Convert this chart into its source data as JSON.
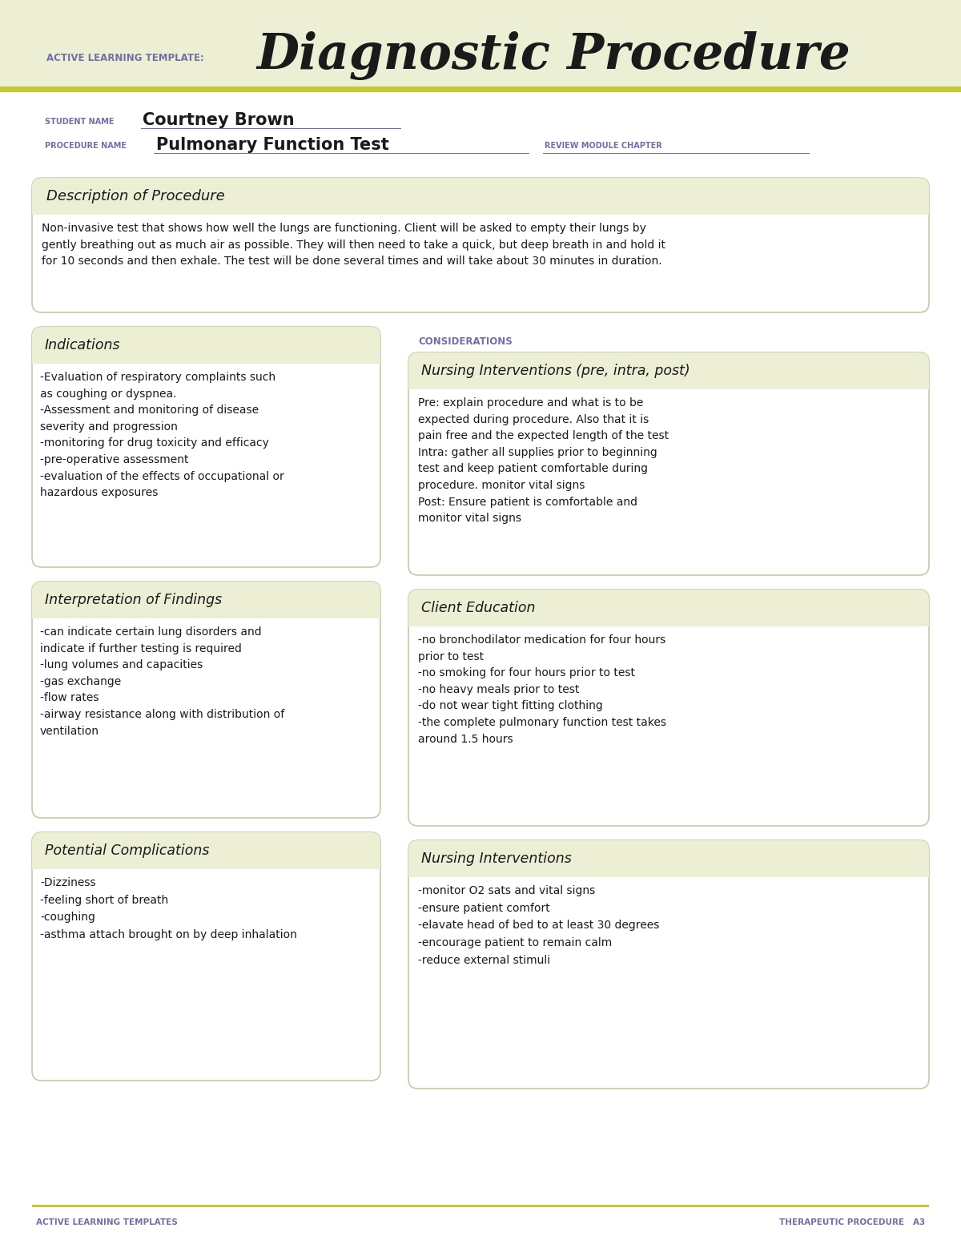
{
  "bg_color": "#edefd4",
  "white_bg": "#ffffff",
  "box_bg": "#edefd4",
  "box_border": "#c8c8a8",
  "olive_line": "#c8c832",
  "purple_text": "#7070a8",
  "dark_text": "#1a1a1a",
  "title_label": "ACTIVE LEARNING TEMPLATE:",
  "title_main": "Diagnostic Procedure",
  "student_label": "STUDENT NAME",
  "student_name": "Courtney Brown",
  "procedure_label": "PROCEDURE NAME",
  "procedure_name": "Pulmonary Function Test",
  "review_label": "REVIEW MODULE CHAPTER",
  "desc_title": "Description of Procedure",
  "desc_text": "Non-invasive test that shows how well the lungs are functioning. Client will be asked to empty their lungs by\ngently breathing out as much air as possible. They will then need to take a quick, but deep breath in and hold it\nfor 10 seconds and then exhale. The test will be done several times and will take about 30 minutes in duration.",
  "indications_title": "Indications",
  "indications_text": "-Evaluation of respiratory complaints such\nas coughing or dyspnea.\n-Assessment and monitoring of disease\nseverity and progression\n-monitoring for drug toxicity and efficacy\n-pre-operative assessment\n-evaluation of the effects of occupational or\nhazardous exposures",
  "considerations_label": "CONSIDERATIONS",
  "nursing_interventions_title": "Nursing Interventions (pre, intra, post)",
  "nursing_interventions_text": "Pre: explain procedure and what is to be\nexpected during procedure. Also that it is\npain free and the expected length of the test\nIntra: gather all supplies prior to beginning\ntest and keep patient comfortable during\nprocedure. monitor vital signs\nPost: Ensure patient is comfortable and\nmonitor vital signs",
  "interpretation_title": "Interpretation of Findings",
  "interpretation_text": "-can indicate certain lung disorders and\nindicate if further testing is required\n-lung volumes and capacities\n-gas exchange\n-flow rates\n-airway resistance along with distribution of\nventilation",
  "client_education_title": "Client Education",
  "client_education_text": "-no bronchodilator medication for four hours\nprior to test\n-no smoking for four hours prior to test\n-no heavy meals prior to test\n-do not wear tight fitting clothing\n-the complete pulmonary function test takes\naround 1.5 hours",
  "potential_complications_title": "Potential Complications",
  "potential_complications_text": "-Dizziness\n-feeling short of breath\n-coughing\n-asthma attach brought on by deep inhalation",
  "nursing_interventions2_title": "Nursing Interventions",
  "nursing_interventions2_text": "-monitor O2 sats and vital signs\n-ensure patient comfort\n-elavate head of bed to at least 30 degrees\n-encourage patient to remain calm\n-reduce external stimuli",
  "footer_left": "ACTIVE LEARNING TEMPLATES",
  "footer_right": "THERAPEUTIC PROCEDURE   A3"
}
